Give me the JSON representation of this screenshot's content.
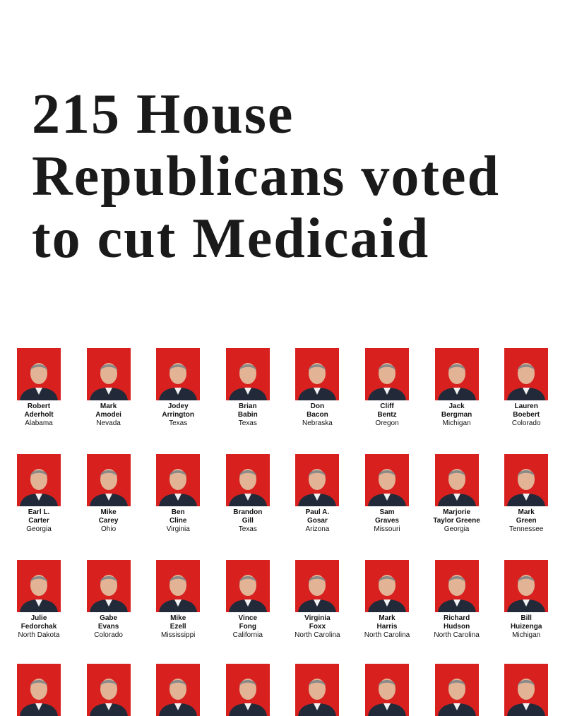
{
  "title": [
    "215 House",
    "Republicans voted",
    "to cut Medicaid"
  ],
  "members": [
    {
      "name": [
        "Robert",
        "Aderholt"
      ],
      "state": "Alabama"
    },
    {
      "name": [
        "Mark",
        "Amodei"
      ],
      "state": "Nevada"
    },
    {
      "name": [
        "Jodey",
        "Arrington"
      ],
      "state": "Texas"
    },
    {
      "name": [
        "Brian",
        "Babin"
      ],
      "state": "Texas"
    },
    {
      "name": [
        "Don",
        "Bacon"
      ],
      "state": "Nebraska"
    },
    {
      "name": [
        "Cliff",
        "Bentz"
      ],
      "state": "Oregon"
    },
    {
      "name": [
        "Jack",
        "Bergman"
      ],
      "state": "Michigan"
    },
    {
      "name": [
        "Lauren",
        "Boebert"
      ],
      "state": "Colorado"
    },
    {
      "name": [
        "Earl L.",
        "Carter"
      ],
      "state": "Georgia"
    },
    {
      "name": [
        "Mike",
        "Carey"
      ],
      "state": "Ohio"
    },
    {
      "name": [
        "Ben",
        "Cline"
      ],
      "state": "Virginia"
    },
    {
      "name": [
        "Brandon",
        "Gill"
      ],
      "state": "Texas"
    },
    {
      "name": [
        "Paul A.",
        "Gosar"
      ],
      "state": "Arizona"
    },
    {
      "name": [
        "Sam",
        "Graves"
      ],
      "state": "Missouri"
    },
    {
      "name": [
        "Marjorie",
        "Taylor Greene"
      ],
      "state": "Georgia"
    },
    {
      "name": [
        "Mark",
        "Green"
      ],
      "state": "Tennessee"
    },
    {
      "name": [
        "Julie",
        "Fedorchak"
      ],
      "state": "North Dakota"
    },
    {
      "name": [
        "Gabe",
        "Evans"
      ],
      "state": "Colorado"
    },
    {
      "name": [
        "Mike",
        "Ezell"
      ],
      "state": "Mississippi"
    },
    {
      "name": [
        "Vince",
        "Fong"
      ],
      "state": "California"
    },
    {
      "name": [
        "Virginia",
        "Foxx"
      ],
      "state": "North Carolina"
    },
    {
      "name": [
        "Mark",
        "Harris"
      ],
      "state": "North Carolina"
    },
    {
      "name": [
        "Richard",
        "Hudson"
      ],
      "state": "North Carolina"
    },
    {
      "name": [
        "Bill",
        "Huizenga"
      ],
      "state": "Michigan"
    }
  ]
}
